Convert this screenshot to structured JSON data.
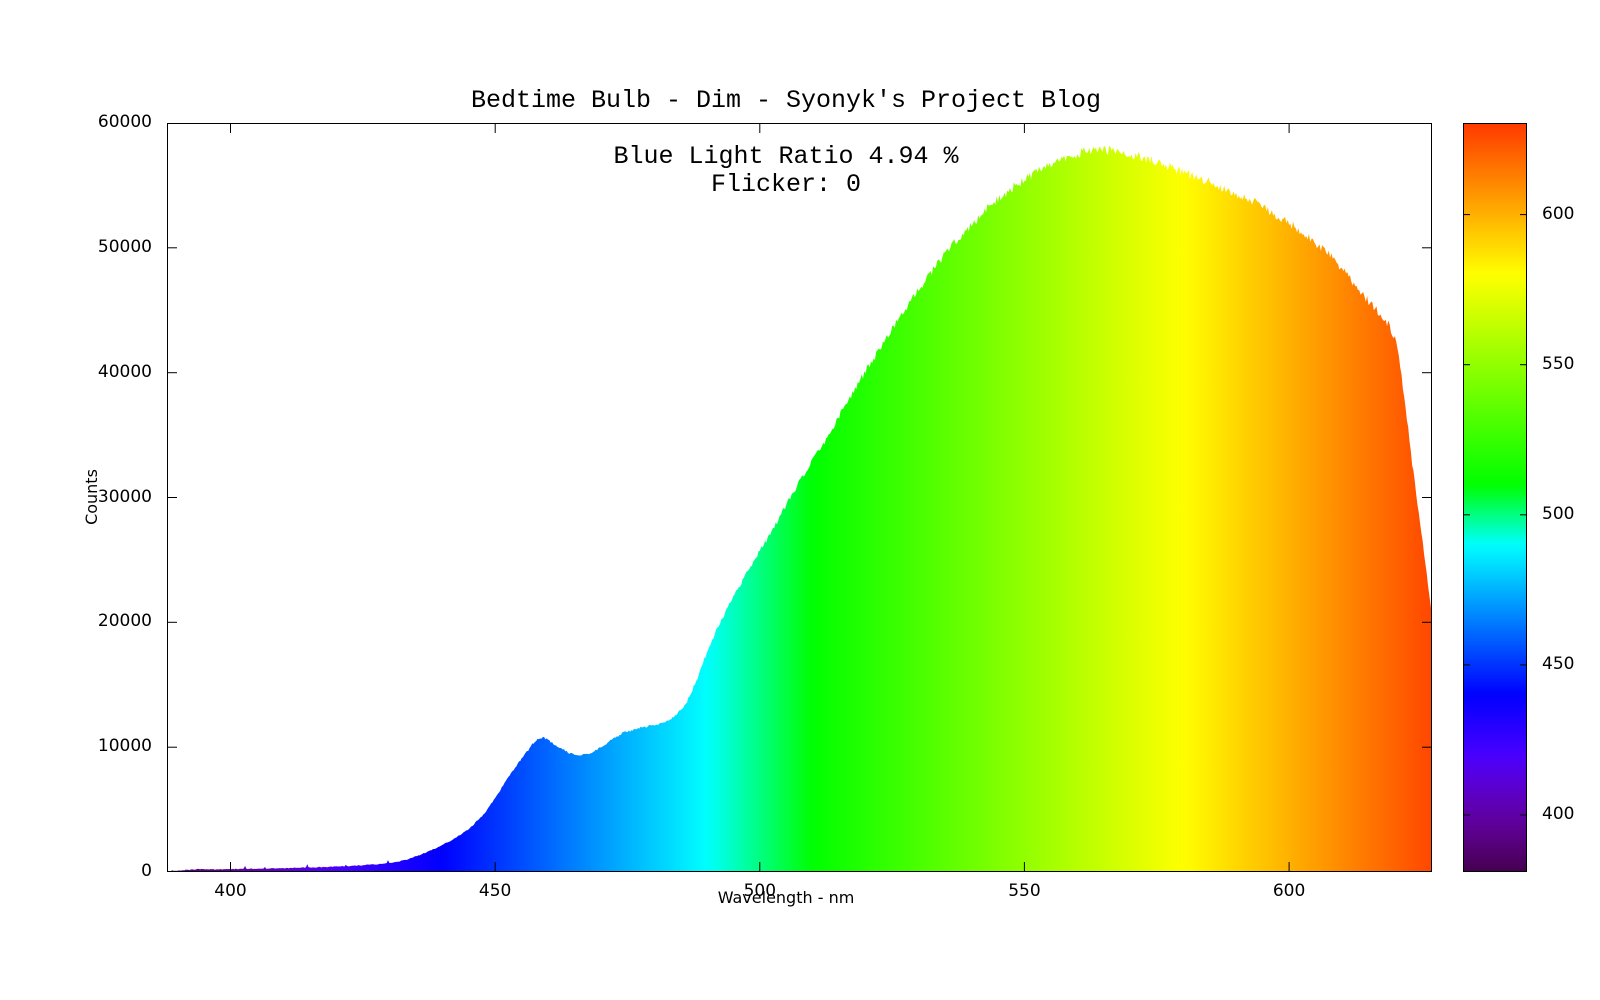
{
  "colors": {
    "background": "#ffffff",
    "frame": "#000000",
    "text": "#000000"
  },
  "chart_data": {
    "type": "area",
    "title": "Bedtime Bulb - Dim - Syonyk's Project Blog",
    "annotations": [
      "Blue Light Ratio 4.94 %",
      "Flicker: 0"
    ],
    "xlabel": "Wavelength - nm",
    "ylabel": "Counts",
    "x_range_nm": [
      388,
      627
    ],
    "y_range_counts": [
      0,
      60000
    ],
    "x_ticks": [
      400,
      450,
      500,
      550,
      600
    ],
    "y_ticks": [
      0,
      10000,
      20000,
      30000,
      40000,
      50000,
      60000
    ],
    "grid": false,
    "legend": false,
    "fill": "spectral-wavelength-gradient",
    "colorbar": {
      "position": "right",
      "range_nm": [
        381,
        630.5
      ],
      "ticks": [
        400,
        450,
        500,
        550,
        600
      ]
    },
    "peak": {
      "wavelength_nm": 563,
      "counts": 57900
    },
    "blue_bump": {
      "wavelength_nm": 459,
      "counts": 10800
    },
    "dip": {
      "wavelength_nm": 466,
      "counts": 9350
    },
    "right_edge_cutoff": {
      "wavelength_nm": 627,
      "counts": 20500
    },
    "series": [
      {
        "name": "spectrum",
        "x_nm": [
          388,
          391,
          394,
          397,
          400,
          403,
          406,
          409,
          412,
          415,
          418,
          421,
          424,
          427,
          430,
          433,
          436,
          439,
          442,
          445,
          448,
          451,
          453,
          455,
          457,
          458,
          459,
          460,
          462,
          464,
          466,
          468,
          470,
          472,
          474,
          476,
          478,
          480,
          482,
          484,
          486,
          488,
          490,
          492,
          494,
          496,
          498,
          500,
          503,
          506,
          509,
          512,
          515,
          518,
          521,
          524,
          527,
          530,
          533,
          536,
          539,
          542,
          545,
          548,
          551,
          554,
          557,
          560,
          562,
          564,
          566,
          568,
          571,
          574,
          577,
          580,
          584,
          588,
          592,
          596,
          600,
          604,
          608,
          611,
          614,
          617,
          619,
          620,
          621,
          622,
          623,
          624,
          625,
          626,
          627
        ],
        "counts": [
          60,
          140,
          240,
          200,
          230,
          260,
          270,
          300,
          330,
          360,
          400,
          450,
          520,
          600,
          700,
          950,
          1400,
          1950,
          2600,
          3400,
          4700,
          6600,
          7900,
          9100,
          10200,
          10600,
          10800,
          10600,
          10000,
          9500,
          9350,
          9500,
          10000,
          10600,
          11100,
          11400,
          11600,
          11750,
          12000,
          12500,
          13400,
          15300,
          17600,
          19600,
          21200,
          22800,
          24300,
          25700,
          27800,
          30200,
          32300,
          34300,
          36500,
          38700,
          40800,
          42800,
          44800,
          46700,
          48400,
          50000,
          51400,
          52700,
          53900,
          54900,
          55700,
          56400,
          57000,
          57500,
          57800,
          57900,
          57800,
          57650,
          57350,
          56950,
          56550,
          56100,
          55450,
          54750,
          53950,
          53050,
          52000,
          50800,
          49300,
          47800,
          46200,
          44800,
          43700,
          42800,
          40500,
          37200,
          33600,
          30200,
          27200,
          23800,
          20500
        ]
      }
    ],
    "noise": {
      "relative_amplitude": 0.014,
      "absolute_amplitude_counts": 70,
      "baseline_speck_region_nm": [
        388,
        434
      ]
    }
  }
}
